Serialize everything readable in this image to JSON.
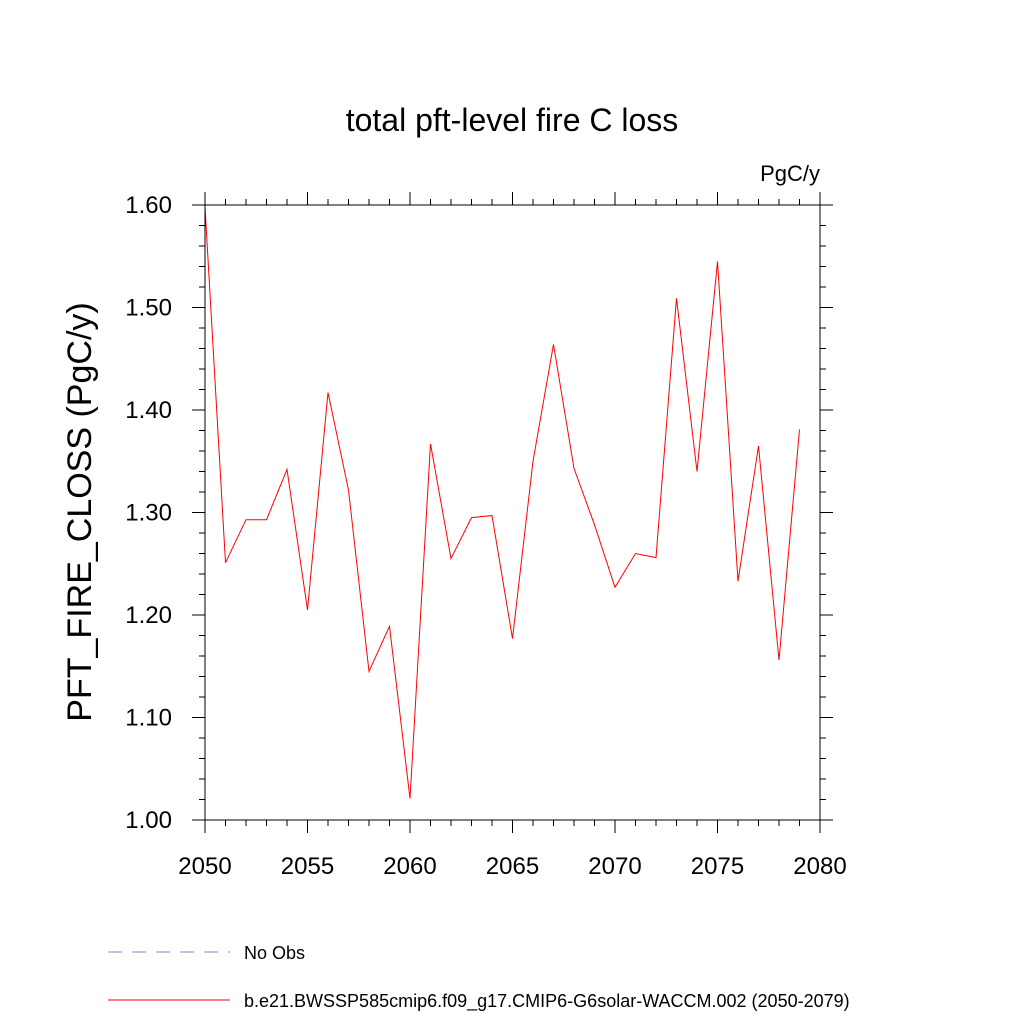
{
  "chart_data": {
    "type": "line",
    "title": "total pft-level fire C loss",
    "units_label": "PgC/y",
    "ylabel": "PFT_FIRE_CLOSS  (PgC/y)",
    "xlabel": "",
    "xlim": [
      2050,
      2080
    ],
    "ylim": [
      1.0,
      1.6
    ],
    "x_ticks": [
      2050,
      2055,
      2060,
      2065,
      2070,
      2075,
      2080
    ],
    "x_tick_labels": [
      "2050",
      "2055",
      "2060",
      "2065",
      "2070",
      "2075",
      "2080"
    ],
    "y_ticks": [
      1.0,
      1.1,
      1.2,
      1.3,
      1.4,
      1.5,
      1.6
    ],
    "y_tick_labels": [
      "1.00",
      "1.10",
      "1.20",
      "1.30",
      "1.40",
      "1.50",
      "1.60"
    ],
    "grid": false,
    "legend_position": "bottom",
    "series": [
      {
        "name": "No Obs",
        "color": "#8080c0",
        "dash": "dashed",
        "x": [],
        "y": []
      },
      {
        "name": "b.e21.BWSSP585cmip6.f09_g17.CMIP6-G6solar-WACCM.002 (2050-2079)",
        "color": "#ff0000",
        "dash": "solid",
        "x": [
          2050,
          2051,
          2052,
          2053,
          2054,
          2055,
          2056,
          2057,
          2058,
          2059,
          2060,
          2061,
          2062,
          2063,
          2064,
          2065,
          2066,
          2067,
          2068,
          2069,
          2070,
          2071,
          2072,
          2073,
          2074,
          2075,
          2076,
          2077,
          2078,
          2079
        ],
        "y": [
          1.598,
          1.251,
          1.293,
          1.293,
          1.342,
          1.205,
          1.417,
          1.322,
          1.145,
          1.189,
          1.021,
          1.367,
          1.255,
          1.295,
          1.297,
          1.177,
          1.35,
          1.464,
          1.343,
          1.288,
          1.227,
          1.26,
          1.256,
          1.509,
          1.34,
          1.545,
          1.233,
          1.365,
          1.156,
          1.381
        ]
      }
    ]
  }
}
